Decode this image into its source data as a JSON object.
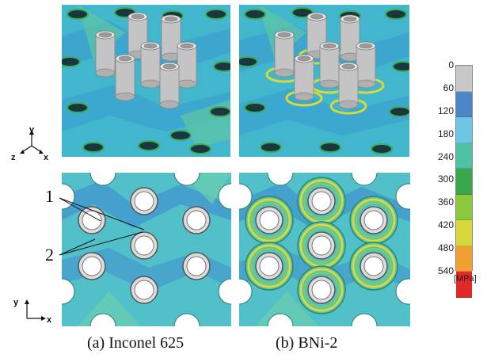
{
  "captions": {
    "a": "(a) Inconel 625",
    "b": "(b) BNi-2"
  },
  "callouts": {
    "one": "1",
    "two": "2"
  },
  "axes_3d": {
    "y": "y",
    "z": "z",
    "x": "x"
  },
  "axes_2d": {
    "y": "y",
    "x": "x"
  },
  "legend": {
    "labels": [
      "0",
      "60",
      "120",
      "180",
      "240",
      "300",
      "360",
      "420",
      "480",
      "540"
    ],
    "unit": "[MPa]",
    "colors": [
      "#c8c8c8",
      "#4a86c8",
      "#6ec6e6",
      "#4fc2a6",
      "#3aa84a",
      "#8cc83c",
      "#d8d83a",
      "#f0a030",
      "#e02828"
    ]
  },
  "colors": {
    "base": "#42b6cd",
    "hole_fill": "#ffffff",
    "cylinder": "#c4c4c4"
  }
}
